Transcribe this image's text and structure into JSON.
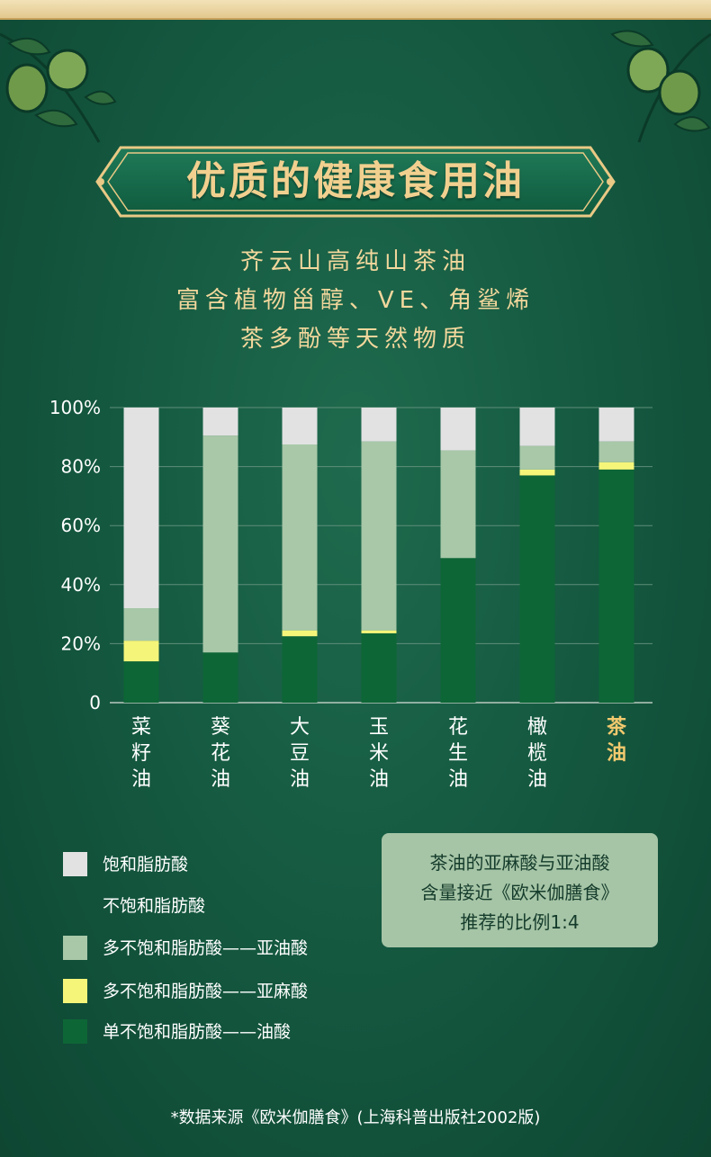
{
  "title": "优质的健康食用油",
  "subtitle_lines": [
    "齐云山高纯山茶油",
    "富含植物甾醇、VE、角鲨烯",
    "茶多酚等天然物质"
  ],
  "colors": {
    "saturated": "#e2e2e2",
    "linoleic": "#a8c8a8",
    "linolenic": "#f5f57a",
    "oleic": "#0d6636",
    "background": "#155a41",
    "gold": "#f1d08f",
    "highlight_label": "#f2c96e"
  },
  "chart_data": {
    "type": "bar",
    "stacked": true,
    "categories": [
      "菜籽油",
      "葵花油",
      "大豆油",
      "玉米油",
      "花生油",
      "橄榄油",
      "茶油"
    ],
    "category_label_lines": [
      [
        "菜",
        "籽",
        "油"
      ],
      [
        "葵",
        "花",
        "油"
      ],
      [
        "大",
        "豆",
        "油"
      ],
      [
        "玉",
        "米",
        "油"
      ],
      [
        "花",
        "生",
        "油"
      ],
      [
        "橄",
        "榄",
        "油"
      ],
      [
        "茶",
        "油"
      ]
    ],
    "highlight_category": "茶油",
    "series": [
      {
        "name": "单不饱和脂肪酸——油酸",
        "values": [
          14,
          17,
          22.5,
          23.5,
          49,
          77,
          79
        ]
      },
      {
        "name": "多不饱和脂肪酸——亚麻酸",
        "values": [
          7,
          0,
          2,
          1,
          0,
          2,
          2.5
        ]
      },
      {
        "name": "多不饱和脂肪酸——亚油酸",
        "values": [
          11,
          73.5,
          63,
          64,
          36.5,
          8,
          7
        ]
      },
      {
        "name": "饱和脂肪酸",
        "values": [
          68,
          9.5,
          12.5,
          11.5,
          14.5,
          13,
          11.5
        ]
      }
    ],
    "ylim": [
      0,
      100
    ],
    "yticks": [
      0,
      20,
      40,
      60,
      80,
      100
    ],
    "ytick_labels": [
      "0",
      "20%",
      "40%",
      "60%",
      "80%",
      "100%"
    ],
    "grid": true
  },
  "legend": [
    {
      "label": "饱和脂肪酸",
      "swatch": "#e2e2e2"
    },
    {
      "label": "不饱和脂肪酸",
      "swatch": ""
    },
    {
      "label": "多不饱和脂肪酸——亚油酸",
      "swatch": "#a8c8a8"
    },
    {
      "label": "多不饱和脂肪酸——亚麻酸",
      "swatch": "#f5f57a"
    },
    {
      "label": "单不饱和脂肪酸——油酸",
      "swatch": "#0d6636"
    }
  ],
  "note_lines": [
    "茶油的亚麻酸与亚油酸",
    "含量接近《欧米伽膳食》",
    "推荐的比例1:4"
  ],
  "source": "*数据来源《欧米伽膳食》(上海科普出版社2002版)"
}
